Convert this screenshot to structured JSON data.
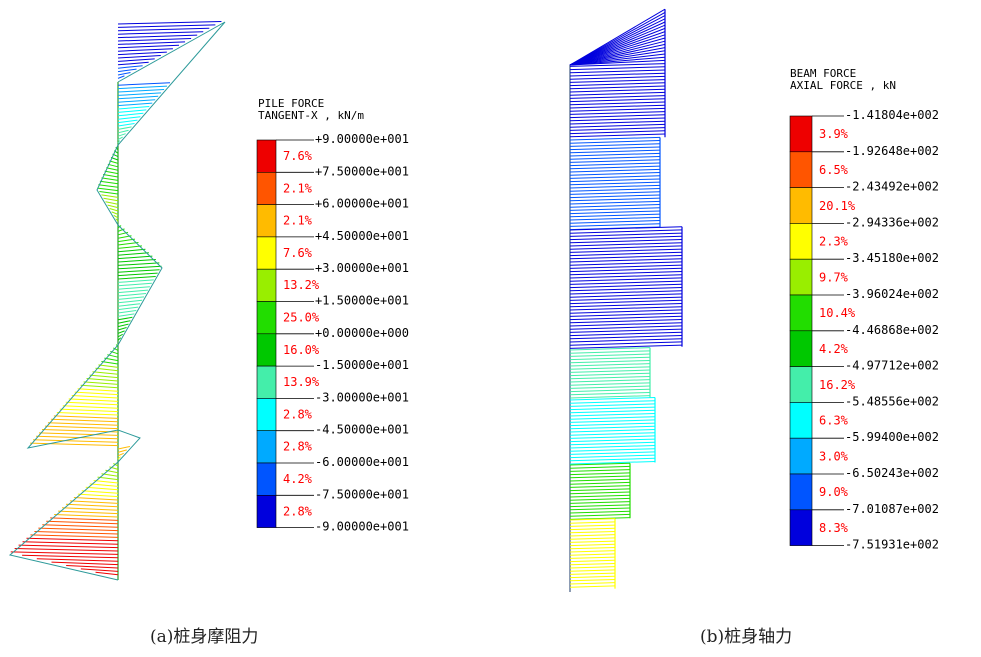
{
  "captions": {
    "a": "(a)桩身摩阻力",
    "b": "(b)桩身轴力"
  },
  "chart_data": [
    {
      "type": "heatmap",
      "title": "PILE FORCE",
      "subtitle": "TANGENT-X , kN/m",
      "xlabel": "",
      "ylabel": "",
      "legend_position": "right",
      "grid": false,
      "legend": {
        "ticks": [
          "+9.00000e+001",
          "+7.50000e+001",
          "+6.00000e+001",
          "+4.50000e+001",
          "+3.00000e+001",
          "+1.50000e+001",
          "+0.00000e+000",
          "-1.50000e+001",
          "-3.00000e+001",
          "-4.50000e+001",
          "-6.00000e+001",
          "-7.50000e+001",
          "-9.00000e+001"
        ],
        "percents": [
          "7.6%",
          "2.1%",
          "2.1%",
          "7.6%",
          "13.2%",
          "25.0%",
          "16.0%",
          "13.9%",
          "2.8%",
          "2.8%",
          "4.2%",
          "2.8%"
        ],
        "colors": [
          "#ee0000",
          "#ff5500",
          "#ffbb00",
          "#ffff00",
          "#99ee00",
          "#22dd00",
          "#00c800",
          "#44eeaa",
          "#00ffff",
          "#00aaff",
          "#0055ff",
          "#0000dd"
        ]
      },
      "value_range": [
        -90,
        90
      ]
    },
    {
      "type": "heatmap",
      "title": "BEAM FORCE",
      "subtitle": "AXIAL FORCE , kN",
      "xlabel": "",
      "ylabel": "",
      "legend_position": "right",
      "grid": false,
      "legend": {
        "ticks": [
          "-1.41804e+002",
          "-1.92648e+002",
          "-2.43492e+002",
          "-2.94336e+002",
          "-3.45180e+002",
          "-3.96024e+002",
          "-4.46868e+002",
          "-4.97712e+002",
          "-5.48556e+002",
          "-5.99400e+002",
          "-6.50243e+002",
          "-7.01087e+002",
          "-7.51931e+002"
        ],
        "percents": [
          "3.9%",
          "6.5%",
          "20.1%",
          "2.3%",
          "9.7%",
          "10.4%",
          "4.2%",
          "16.2%",
          "6.3%",
          "3.0%",
          "9.0%",
          "8.3%"
        ],
        "colors": [
          "#ee0000",
          "#ff5500",
          "#ffbb00",
          "#ffff00",
          "#99ee00",
          "#22dd00",
          "#00c800",
          "#44eeaa",
          "#00ffff",
          "#00aaff",
          "#0055ff",
          "#0000dd"
        ]
      },
      "value_range": [
        -751.931,
        -141.804
      ]
    }
  ]
}
